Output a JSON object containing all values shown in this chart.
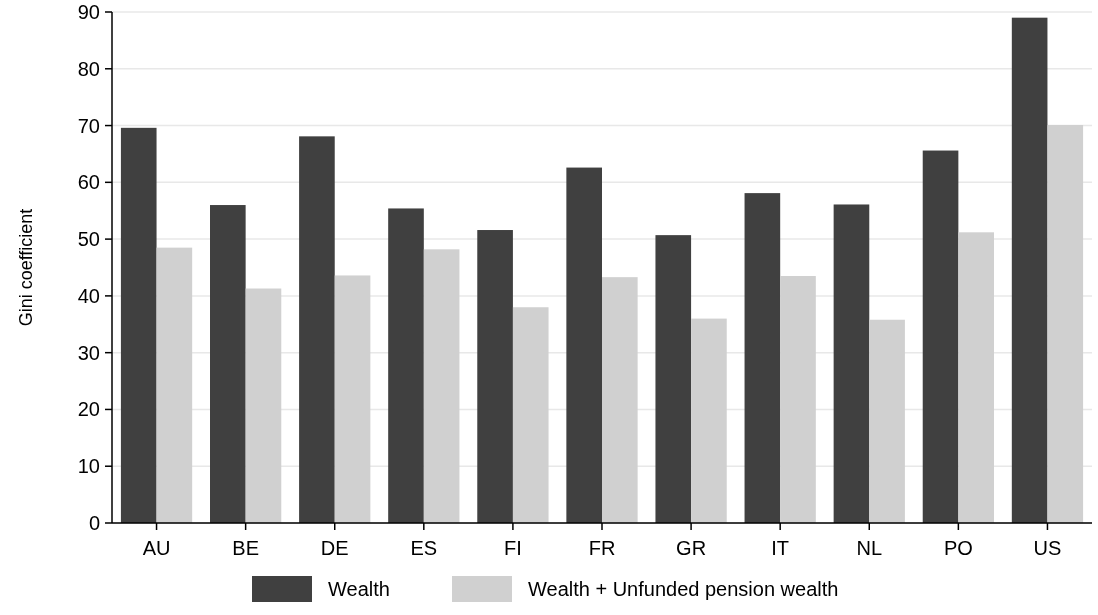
{
  "chart_data": {
    "type": "bar",
    "ylabel": "Gini coefficient",
    "categories": [
      "AU",
      "BE",
      "DE",
      "ES",
      "FI",
      "FR",
      "GR",
      "IT",
      "NL",
      "PO",
      "US"
    ],
    "series": [
      {
        "name": "Wealth",
        "color": "#404040",
        "values": [
          69.6,
          56,
          68.1,
          55.4,
          51.6,
          62.6,
          50.7,
          58.1,
          56.1,
          65.6,
          89
        ]
      },
      {
        "name": "Wealth + Unfunded pension wealth",
        "color": "#d0d0d0",
        "values": [
          48.5,
          41.3,
          43.6,
          48.2,
          38,
          43.3,
          36,
          43.5,
          35.8,
          51.2,
          70.1
        ]
      }
    ],
    "ylim": [
      0,
      90
    ],
    "yticks": [
      0,
      10,
      20,
      30,
      40,
      50,
      60,
      70,
      80,
      90
    ],
    "grid": "y",
    "legend": "bottom"
  }
}
